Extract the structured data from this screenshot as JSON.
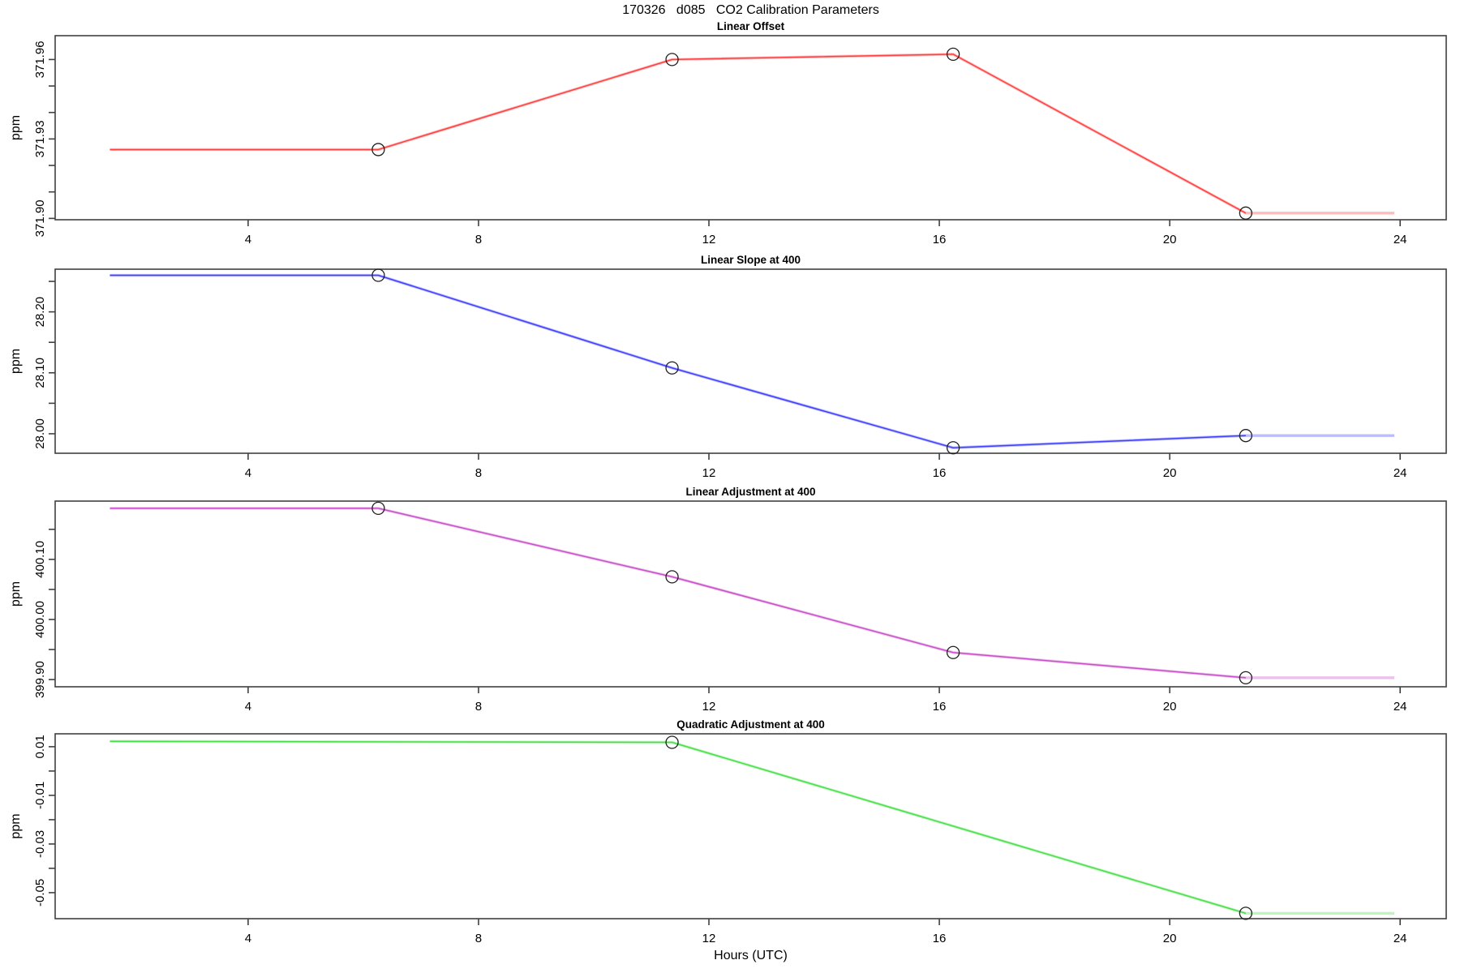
{
  "page": {
    "title": "170326   d085   CO2 Calibration Parameters",
    "xlabel": "Hours (UTC)"
  },
  "axes": {
    "xlim": [
      0.65,
      24.8
    ],
    "x_tick_values": [
      4,
      8,
      12,
      16,
      20,
      24
    ],
    "x_tick_labels": [
      "4",
      "8",
      "12",
      "16",
      "20",
      "24"
    ],
    "grid": false,
    "legend": "none"
  },
  "chart_data": [
    {
      "type": "line",
      "title": "Linear Offset",
      "ylabel": "ppm",
      "color": "#ff4040",
      "ylim": [
        371.8995,
        371.969
      ],
      "y_tick_values": [
        371.9,
        371.91,
        371.92,
        371.93,
        371.94,
        371.95,
        371.96
      ],
      "y_tick_labels": [
        "371.90",
        "",
        "",
        "371.93",
        "",
        "",
        "371.96"
      ],
      "line_x": [
        1.6,
        6.26,
        11.36,
        16.24,
        21.32,
        23.9
      ],
      "line_y": [
        371.926,
        371.926,
        371.96,
        371.962,
        371.902,
        371.902
      ],
      "marker_x": [
        6.26,
        11.36,
        16.24,
        21.32
      ],
      "marker_y": [
        371.926,
        371.96,
        371.962,
        371.902
      ]
    },
    {
      "type": "line",
      "title": "Linear Slope at 400",
      "ylabel": "ppm",
      "color": "#4040ff",
      "ylim": [
        27.968,
        28.27
      ],
      "y_tick_values": [
        28.0,
        28.05,
        28.1,
        28.15,
        28.2,
        28.25
      ],
      "y_tick_labels": [
        "28.00",
        "",
        "28.10",
        "",
        "28.20",
        ""
      ],
      "line_x": [
        1.6,
        6.26,
        11.36,
        16.24,
        21.32,
        23.9
      ],
      "line_y": [
        28.26,
        28.26,
        28.108,
        27.977,
        27.997,
        27.997
      ],
      "marker_x": [
        6.26,
        11.36,
        16.24,
        21.32
      ],
      "marker_y": [
        28.26,
        28.108,
        27.977,
        27.997
      ]
    },
    {
      "type": "line",
      "title": "Linear Adjustment at 400",
      "ylabel": "ppm",
      "color": "#c850c8",
      "ylim": [
        399.888,
        400.197
      ],
      "y_tick_values": [
        399.9,
        399.95,
        400.0,
        400.05,
        400.1,
        400.15
      ],
      "y_tick_labels": [
        "399.90",
        "",
        "400.00",
        "",
        "400.10",
        ""
      ],
      "line_x": [
        1.6,
        6.26,
        11.36,
        16.24,
        21.32,
        23.9
      ],
      "line_y": [
        400.185,
        400.185,
        400.071,
        399.945,
        399.903,
        399.903
      ],
      "marker_x": [
        6.26,
        11.36,
        16.24,
        21.32
      ],
      "marker_y": [
        400.185,
        400.071,
        399.945,
        399.903
      ]
    },
    {
      "type": "line",
      "title": "Quadratic Adjustment at 400",
      "ylabel": "ppm",
      "color": "#48e048",
      "ylim": [
        -0.0607,
        0.0153
      ],
      "y_tick_values": [
        -0.05,
        -0.04,
        -0.03,
        -0.02,
        -0.01,
        0.0,
        0.01
      ],
      "y_tick_labels": [
        "-0.05",
        "",
        "-0.03",
        "",
        "-0.01",
        "",
        "0.01"
      ],
      "line_x": [
        1.6,
        11.36,
        21.32,
        23.9
      ],
      "line_y": [
        0.0122,
        0.0118,
        -0.0585,
        -0.0585
      ],
      "marker_x": [
        11.36,
        21.32
      ],
      "marker_y": [
        0.0118,
        -0.0585
      ]
    }
  ]
}
